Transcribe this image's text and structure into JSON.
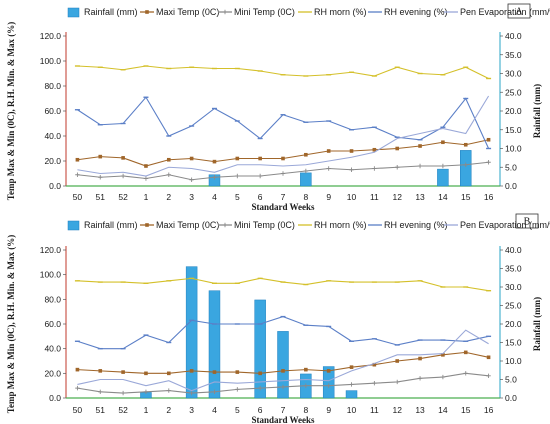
{
  "chart_data": [
    {
      "type": "bar",
      "panel_label": "A",
      "categories": [
        "50",
        "51",
        "52",
        "1",
        "2",
        "3",
        "4",
        "5",
        "6",
        "7",
        "8",
        "9",
        "10",
        "11",
        "12",
        "13",
        "14",
        "15",
        "16"
      ],
      "xlabel": "Standard Weeks",
      "ylabel_left": "Temp Max & Min (0C), R.H. Min. & Max (%)",
      "ylabel_right": "Rainfall (mm)",
      "ylim_left": [
        0,
        120
      ],
      "ylim_right": [
        0,
        40
      ],
      "yticks_left": [
        "0.0",
        "20.0",
        "40.0",
        "60.0",
        "80.0",
        "100.0",
        "120.0"
      ],
      "yticks_right": [
        "0.0",
        "5.0",
        "10.0",
        "15.0",
        "20.0",
        "25.0",
        "30.0",
        "35.0",
        "40.0"
      ],
      "legend": [
        "Rainfall (mm)",
        "Maxi Temp (0C)",
        "Mini Temp (0C)",
        "RH morn (%)",
        "RH evening (%)",
        "Pen Evaporation (mm/week)"
      ],
      "series": [
        {
          "name": "Rainfall (mm)",
          "kind": "bar",
          "axis": "right",
          "color": "#3aa6e0",
          "values": [
            0,
            0,
            0,
            0,
            0,
            0,
            3,
            0,
            0,
            0,
            3.5,
            0,
            0,
            0,
            0,
            0,
            4.5,
            9.5,
            0
          ]
        },
        {
          "name": "Maxi Temp (0C)",
          "kind": "line",
          "axis": "left",
          "color": "#a0662a",
          "marker": "square",
          "values": [
            21,
            23.5,
            22.5,
            16,
            21,
            22,
            19.5,
            22,
            22,
            22,
            25,
            28,
            28,
            29,
            30,
            32,
            35,
            33,
            37
          ]
        },
        {
          "name": "Mini Temp (0C)",
          "kind": "line",
          "axis": "left",
          "color": "#8a8a8a",
          "marker": "plus",
          "values": [
            9,
            7,
            8,
            6,
            9,
            5,
            7,
            8,
            8,
            10,
            12,
            14,
            13,
            14,
            15,
            16,
            16,
            17,
            19
          ]
        },
        {
          "name": "RH morn (%)",
          "kind": "line",
          "axis": "left",
          "color": "#d4c02a",
          "marker": "dash",
          "values": [
            96,
            95,
            93,
            96,
            94,
            95,
            94,
            94,
            92,
            89,
            88,
            89,
            91,
            88,
            95,
            90,
            89,
            95,
            86
          ]
        },
        {
          "name": "RH evening (%)",
          "kind": "line",
          "axis": "left",
          "color": "#5b7fc7",
          "marker": "dash",
          "values": [
            61,
            49,
            50,
            71,
            40,
            48,
            62,
            52,
            38,
            57,
            51,
            52,
            45,
            47,
            39,
            37,
            47,
            70,
            30
          ]
        },
        {
          "name": "Pen Evaporation (mm/week)",
          "kind": "line",
          "axis": "left",
          "color": "#9aa8d8",
          "marker": "none",
          "values": [
            13,
            10,
            11,
            8,
            15,
            14,
            11,
            17,
            17,
            16,
            17,
            20,
            23,
            27,
            38,
            42,
            46,
            42,
            72
          ]
        }
      ]
    },
    {
      "type": "bar",
      "panel_label": "B",
      "categories": [
        "50",
        "51",
        "52",
        "1",
        "2",
        "3",
        "4",
        "5",
        "6",
        "7",
        "8",
        "9",
        "10",
        "11",
        "12",
        "13",
        "14",
        "15",
        "16"
      ],
      "xlabel": "Standard Weeks",
      "ylabel_left": "Temp Max & Min (0C), R.H. Min. & Max (%)",
      "ylabel_right": "Rainfall (mm)",
      "ylim_left": [
        0,
        120
      ],
      "ylim_right": [
        0,
        40
      ],
      "yticks_left": [
        "0.0",
        "20.0",
        "40.0",
        "60.0",
        "80.0",
        "100.0",
        "120.0"
      ],
      "yticks_right": [
        "0.0",
        "5.0",
        "10.0",
        "15.0",
        "20.0",
        "25.0",
        "30.0",
        "35.0",
        "40.0"
      ],
      "legend": [
        "Rainfall (mm)",
        "Maxi Temp (0C)",
        "Mini Temp (0C)",
        "RH morn (%)",
        "RH evening (%)",
        "Pen Evaporation (mm/week)"
      ],
      "series": [
        {
          "name": "Rainfall (mm)",
          "kind": "bar",
          "axis": "right",
          "color": "#3aa6e0",
          "values": [
            0,
            0,
            0,
            1.5,
            0,
            35.5,
            29,
            0,
            26.5,
            18,
            6.5,
            8.5,
            2,
            0,
            0,
            0,
            0,
            0,
            0
          ]
        },
        {
          "name": "Maxi Temp (0C)",
          "kind": "line",
          "axis": "left",
          "color": "#a0662a",
          "marker": "square",
          "values": [
            23,
            22,
            21,
            20,
            20,
            22,
            21,
            21,
            20,
            22,
            23,
            22,
            25,
            27,
            30,
            32,
            35,
            37,
            33
          ]
        },
        {
          "name": "Mini Temp (0C)",
          "kind": "line",
          "axis": "left",
          "color": "#8a8a8a",
          "marker": "plus",
          "values": [
            8,
            5,
            4,
            5,
            6,
            4,
            5,
            7,
            8,
            9,
            10,
            10,
            11,
            12,
            13,
            16,
            17,
            20,
            18
          ]
        },
        {
          "name": "RH morn (%)",
          "kind": "line",
          "axis": "left",
          "color": "#d4c02a",
          "marker": "dash",
          "values": [
            95,
            94,
            94,
            93,
            95,
            97,
            93,
            93,
            97,
            94,
            92,
            95,
            94,
            94,
            94,
            95,
            90,
            90,
            87
          ]
        },
        {
          "name": "RH evening (%)",
          "kind": "line",
          "axis": "left",
          "color": "#5b7fc7",
          "marker": "dash",
          "values": [
            46,
            40,
            40,
            51,
            45,
            63,
            60,
            60,
            60,
            66,
            59,
            58,
            46,
            48,
            43,
            47,
            47,
            46,
            50
          ]
        },
        {
          "name": "Pen Evaporation (mm/week)",
          "kind": "line",
          "axis": "left",
          "color": "#9aa8d8",
          "marker": "none",
          "values": [
            11,
            15,
            15,
            10,
            14,
            6,
            13,
            12,
            13,
            14,
            15,
            14,
            22,
            28,
            35,
            35,
            36,
            55,
            44
          ]
        }
      ]
    }
  ]
}
